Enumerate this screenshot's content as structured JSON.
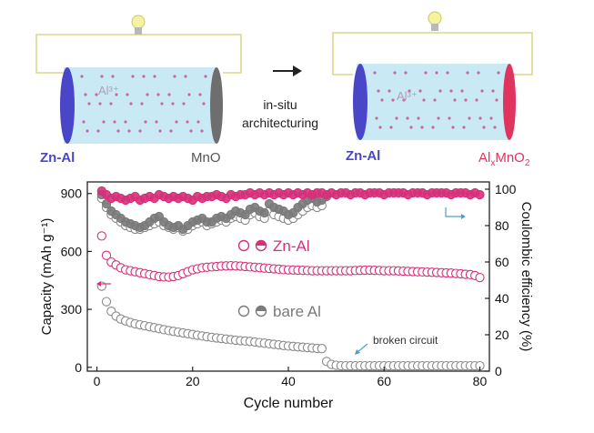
{
  "schematic": {
    "left_cell": {
      "anode_label": "Zn-Al",
      "cathode_label": "MnO",
      "ion_label": "Al³⁺"
    },
    "right_cell": {
      "anode_label": "Zn-Al",
      "cathode_label_main": "Al",
      "cathode_label_sub": "x",
      "cathode_label_rest": "MnO",
      "cathode_label_sub2": "2",
      "ion_label": "Al³⁺"
    },
    "arrow_label_line1": "in-situ",
    "arrow_label_line2": "architecturing",
    "colors": {
      "electrolyte": "#c9eaf4",
      "zn_al": "#4a46c8",
      "mno": "#6e6e6e",
      "almno2": "#e0345f",
      "ion_dot": "#c46aa0",
      "wire": "#d8d88a",
      "bulb": "#f3f3a0"
    }
  },
  "chart_data": {
    "type": "scatter",
    "xlabel": "Cycle number",
    "ylabel_left": "Capacity (mAh g⁻¹)",
    "ylabel_right": "Coulombic efficiency (%)",
    "xlim": [
      -2,
      82
    ],
    "ylim_left": [
      -20,
      960
    ],
    "ylim_right": [
      0,
      104
    ],
    "x_ticks": [
      0,
      20,
      40,
      60,
      80
    ],
    "y_left_ticks": [
      0,
      300,
      600,
      900
    ],
    "y_right_ticks": [
      0,
      20,
      40,
      60,
      80,
      100
    ],
    "legend": [
      {
        "label": "Zn-Al",
        "color": "#d6307a"
      },
      {
        "label": "bare Al",
        "color": "#7a7a7a"
      }
    ],
    "annotations": [
      {
        "text": "broken circuit"
      }
    ],
    "series": [
      {
        "name": "Zn-Al",
        "axis": "left",
        "color": "#d6307a",
        "x": [
          1,
          2,
          3,
          4,
          5,
          6,
          7,
          8,
          9,
          10,
          11,
          12,
          13,
          14,
          15,
          16,
          17,
          18,
          19,
          20,
          21,
          22,
          23,
          24,
          25,
          26,
          27,
          28,
          29,
          30,
          31,
          32,
          33,
          34,
          35,
          36,
          37,
          38,
          39,
          40,
          41,
          42,
          43,
          44,
          45,
          46,
          47,
          48,
          49,
          50,
          51,
          52,
          53,
          54,
          55,
          56,
          57,
          58,
          59,
          60,
          61,
          62,
          63,
          64,
          65,
          66,
          67,
          68,
          69,
          70,
          71,
          72,
          73,
          74,
          75,
          76,
          77,
          78,
          79,
          80
        ],
        "y": [
          680,
          580,
          545,
          530,
          515,
          505,
          500,
          495,
          490,
          485,
          480,
          475,
          470,
          468,
          467,
          470,
          475,
          485,
          495,
          505,
          510,
          515,
          518,
          520,
          522,
          524,
          525,
          526,
          525,
          524,
          522,
          520,
          518,
          516,
          514,
          512,
          510,
          508,
          506,
          505,
          504,
          503,
          502,
          501,
          500,
          500,
          500,
          500,
          500,
          500,
          500,
          500,
          500,
          501,
          502,
          503,
          503,
          502,
          501,
          500,
          500,
          500,
          499,
          498,
          497,
          496,
          495,
          494,
          493,
          492,
          491,
          490,
          489,
          488,
          486,
          484,
          482,
          480,
          475,
          465
        ]
      },
      {
        "name": "bare Al",
        "axis": "left",
        "color": "#8a8a8a",
        "x": [
          1,
          2,
          3,
          4,
          5,
          6,
          7,
          8,
          9,
          10,
          11,
          12,
          13,
          14,
          15,
          16,
          17,
          18,
          19,
          20,
          21,
          22,
          23,
          24,
          25,
          26,
          27,
          28,
          29,
          30,
          31,
          32,
          33,
          34,
          35,
          36,
          37,
          38,
          39,
          40,
          41,
          42,
          43,
          44,
          45,
          46,
          47,
          48,
          49,
          50,
          51,
          52,
          53,
          54,
          55,
          56,
          57,
          58,
          59,
          60,
          61,
          62,
          63,
          64,
          65,
          66,
          67,
          68,
          69,
          70,
          71,
          72,
          73,
          74,
          75,
          76,
          77,
          78,
          79,
          80
        ],
        "y": [
          420,
          340,
          290,
          265,
          250,
          240,
          232,
          225,
          220,
          215,
          210,
          205,
          200,
          195,
          190,
          186,
          182,
          178,
          174,
          170,
          166,
          162,
          158,
          155,
          152,
          149,
          146,
          143,
          140,
          138,
          136,
          134,
          131,
          128,
          125,
          122,
          119,
          116,
          113,
          110,
          108,
          106,
          104,
          102,
          100,
          98,
          97,
          30,
          15,
          10,
          8,
          8,
          8,
          8,
          8,
          8,
          8,
          8,
          8,
          8,
          8,
          8,
          8,
          8,
          8,
          8,
          8,
          8,
          8,
          8,
          8,
          8,
          8,
          8,
          8,
          8,
          8,
          8,
          8,
          8
        ]
      },
      {
        "name": "Zn-Al CE",
        "axis": "right",
        "color": "#d6307a",
        "filled": true,
        "x": [
          1,
          2,
          3,
          4,
          5,
          6,
          7,
          8,
          9,
          10,
          11,
          12,
          13,
          14,
          15,
          16,
          17,
          18,
          19,
          20,
          21,
          22,
          23,
          24,
          25,
          26,
          27,
          28,
          29,
          30,
          31,
          32,
          33,
          34,
          35,
          36,
          37,
          38,
          39,
          40,
          41,
          42,
          43,
          44,
          45,
          46,
          47,
          48,
          49,
          50,
          51,
          52,
          53,
          54,
          55,
          56,
          57,
          58,
          59,
          60,
          61,
          62,
          63,
          64,
          65,
          66,
          67,
          68,
          69,
          70,
          71,
          72,
          73,
          74,
          75,
          76,
          77,
          78,
          79,
          80
        ],
        "y": [
          99,
          97,
          95,
          96,
          95,
          94,
          95,
          96,
          94,
          95,
          96,
          95,
          97,
          96,
          95,
          96,
          95,
          96,
          95,
          94,
          96,
          95,
          96,
          96,
          97,
          96,
          95,
          97,
          96,
          97,
          97,
          98,
          97,
          98,
          97,
          98,
          97,
          98,
          97,
          98,
          97,
          98,
          97,
          98,
          97,
          98,
          98,
          97,
          98,
          97,
          98,
          98,
          97,
          98,
          98,
          97,
          98,
          98,
          98,
          97,
          98,
          98,
          98,
          98,
          97,
          98,
          98,
          98,
          97,
          98,
          98,
          98,
          98,
          97,
          98,
          98,
          98,
          97,
          98,
          97
        ]
      },
      {
        "name": "bare Al CE",
        "axis": "right",
        "color": "#7a7a7a",
        "filled": true,
        "x": [
          1,
          2,
          3,
          4,
          5,
          6,
          7,
          8,
          9,
          10,
          11,
          12,
          13,
          14,
          15,
          16,
          17,
          18,
          19,
          20,
          21,
          22,
          23,
          24,
          25,
          26,
          27,
          28,
          29,
          30,
          31,
          32,
          33,
          34,
          35,
          36,
          37,
          38,
          39,
          40,
          41,
          42,
          43,
          44,
          45,
          46,
          47,
          48
        ],
        "y": [
          97,
          92,
          88,
          86,
          84,
          82,
          81,
          80,
          79,
          80,
          82,
          84,
          85,
          82,
          80,
          79,
          80,
          78,
          80,
          82,
          83,
          84,
          82,
          82,
          84,
          85,
          84,
          86,
          88,
          87,
          86,
          89,
          90,
          88,
          87,
          92,
          90,
          89,
          88,
          86,
          87,
          90,
          92,
          94,
          95,
          93,
          94,
          96
        ]
      },
      {
        "name": "bare Al CE open",
        "axis": "right",
        "color": "#8a8a8a",
        "filled": false,
        "x": [
          1,
          2,
          3,
          4,
          5,
          6,
          7,
          8,
          9,
          10,
          11,
          12,
          13,
          14,
          15,
          16,
          17,
          18,
          19,
          20,
          21,
          22,
          23,
          24,
          25,
          26,
          27,
          28,
          29,
          30,
          31,
          32,
          33,
          34,
          35,
          36,
          37,
          38,
          39,
          40,
          41,
          42,
          43,
          44,
          45,
          46,
          47
        ],
        "y": [
          95,
          90,
          86,
          84,
          82,
          80,
          79,
          78,
          78,
          79,
          80,
          81,
          82,
          80,
          79,
          78,
          79,
          77,
          78,
          80,
          81,
          82,
          80,
          81,
          82,
          83,
          82,
          84,
          85,
          84,
          83,
          86,
          87,
          85,
          84,
          88,
          86,
          85,
          84,
          83,
          84,
          86,
          88,
          90,
          91,
          90,
          91
        ]
      }
    ]
  }
}
